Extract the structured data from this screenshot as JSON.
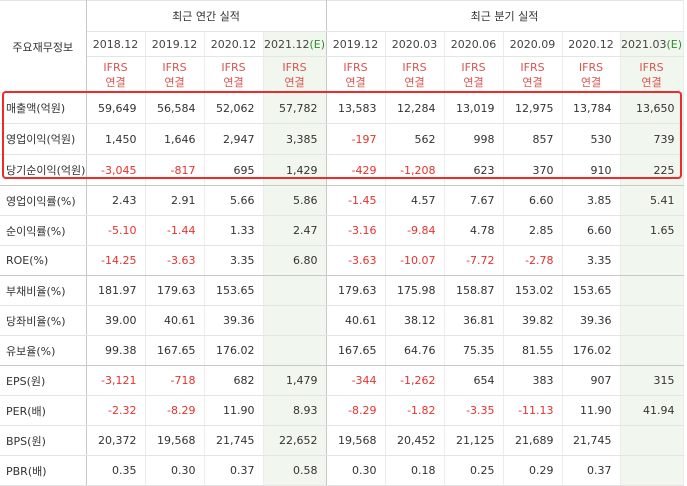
{
  "corner_label": "주요재무정보",
  "annual_header": "최근 연간 실적",
  "quarter_header": "최근 분기 실적",
  "periods": [
    {
      "label": "2018.12",
      "est": false
    },
    {
      "label": "2019.12",
      "est": false
    },
    {
      "label": "2020.12",
      "est": false
    },
    {
      "label": "2021.12",
      "est": true,
      "est_mark": "(E)"
    },
    {
      "label": "2019.12",
      "est": false
    },
    {
      "label": "2020.03",
      "est": false
    },
    {
      "label": "2020.06",
      "est": false
    },
    {
      "label": "2020.09",
      "est": false
    },
    {
      "label": "2020.12",
      "est": false
    },
    {
      "label": "2021.03",
      "est": true,
      "est_mark": "(E)"
    }
  ],
  "basis_line1": "IFRS",
  "basis_line2": "연결",
  "rows": [
    {
      "label": "매출액(억원)",
      "values": [
        "59,649",
        "56,584",
        "52,062",
        "57,782",
        "13,583",
        "12,284",
        "13,019",
        "12,975",
        "13,784",
        "13,650"
      ]
    },
    {
      "label": "영업이익(억원)",
      "values": [
        "1,450",
        "1,646",
        "2,947",
        "3,385",
        "-197",
        "562",
        "998",
        "857",
        "530",
        "739"
      ]
    },
    {
      "label": "당기순이익(억원)",
      "values": [
        "-3,045",
        "-817",
        "695",
        "1,429",
        "-429",
        "-1,208",
        "623",
        "370",
        "910",
        "225"
      ]
    },
    {
      "label": "영업이익률(%)",
      "values": [
        "2.43",
        "2.91",
        "5.66",
        "5.86",
        "-1.45",
        "4.57",
        "7.67",
        "6.60",
        "3.85",
        "5.41"
      ]
    },
    {
      "label": "순이익률(%)",
      "values": [
        "-5.10",
        "-1.44",
        "1.33",
        "2.47",
        "-3.16",
        "-9.84",
        "4.78",
        "2.85",
        "6.60",
        "1.65"
      ]
    },
    {
      "label": "ROE(%)",
      "values": [
        "-14.25",
        "-3.63",
        "3.35",
        "6.80",
        "-3.63",
        "-10.07",
        "-7.72",
        "-2.78",
        "3.35",
        ""
      ]
    },
    {
      "label": "부채비율(%)",
      "values": [
        "181.97",
        "179.63",
        "153.65",
        "",
        "179.63",
        "175.98",
        "158.87",
        "153.02",
        "153.65",
        ""
      ]
    },
    {
      "label": "당좌비율(%)",
      "values": [
        "39.00",
        "40.61",
        "39.36",
        "",
        "40.61",
        "38.12",
        "36.81",
        "39.82",
        "39.36",
        ""
      ]
    },
    {
      "label": "유보율(%)",
      "values": [
        "99.38",
        "167.65",
        "176.02",
        "",
        "167.65",
        "64.76",
        "75.35",
        "81.55",
        "176.02",
        ""
      ]
    },
    {
      "label": "EPS(원)",
      "values": [
        "-3,121",
        "-718",
        "682",
        "1,479",
        "-344",
        "-1,262",
        "654",
        "383",
        "907",
        "315"
      ]
    },
    {
      "label": "PER(배)",
      "values": [
        "-2.32",
        "-8.29",
        "11.90",
        "8.93",
        "-8.29",
        "-1.82",
        "-3.35",
        "-11.13",
        "11.90",
        "41.94"
      ]
    },
    {
      "label": "BPS(원)",
      "values": [
        "20,372",
        "19,568",
        "21,745",
        "22,652",
        "19,568",
        "20,452",
        "21,125",
        "21,689",
        "21,745",
        ""
      ]
    },
    {
      "label": "PBR(배)",
      "values": [
        "0.35",
        "0.30",
        "0.37",
        "0.58",
        "0.30",
        "0.18",
        "0.25",
        "0.29",
        "0.37",
        ""
      ]
    }
  ],
  "colors": {
    "negative": "#e6322d",
    "estimate_bg": "#f1f7ee",
    "highlight_box": "#ee2a2a",
    "basis": "#d9534f"
  }
}
